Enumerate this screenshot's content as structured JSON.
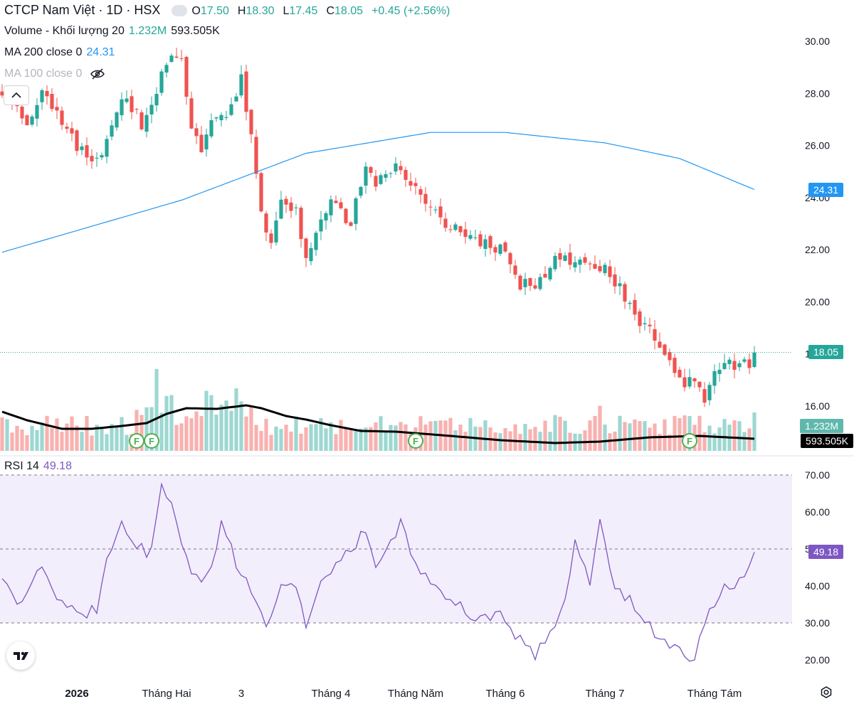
{
  "header": {
    "symbol_title": "CTCP Nam Việt · 1D · HSX",
    "ohlc": {
      "o_label": "O",
      "o": "17.50",
      "h_label": "H",
      "h": "18.30",
      "l_label": "L",
      "l": "17.45",
      "c_label": "C",
      "c": "18.05",
      "change": "+0.45 (+2.56%)"
    },
    "volume_label": "Volume - Khối lượng 20",
    "volume_value": "1.232M",
    "volume_ma_value": "593.505K",
    "ma200_label": "MA 200 close 0",
    "ma200_value": "24.31",
    "ma100_label": "MA 100 close 0"
  },
  "rsi": {
    "label": "RSI 14",
    "value": "49.18",
    "levels": [
      70,
      50,
      30
    ]
  },
  "price_scale": {
    "ticks": [
      "30.00",
      "28.00",
      "26.00",
      "24.00",
      "22.00",
      "20.00",
      "18.00",
      "16.00"
    ],
    "last_price": "18.05",
    "ma200_tag": "24.31",
    "vol_tag": "1.232M",
    "vol_ma_tag": "593.505K"
  },
  "rsi_scale": {
    "ticks": [
      "70.00",
      "60.00",
      "50.00",
      "40.00",
      "30.00",
      "20.00"
    ],
    "current": "49.18"
  },
  "time_axis": [
    "2026",
    "Tháng Hai",
    "3",
    "Tháng 4",
    "Tháng Năm",
    "Tháng 6",
    "Tháng 7",
    "Tháng Tám"
  ],
  "markers": {
    "label": "F"
  },
  "colors": {
    "up": "#26a69a",
    "down": "#ef5350",
    "ma200": "#2196f3",
    "rsi": "#7e57c2",
    "rsi_band": "#f3eefb",
    "vol_ma": "#000000",
    "ma200_tag_bg": "#2196f3",
    "last_price_bg": "#26a69a",
    "rsi_tag_bg": "#7e57c2"
  },
  "chart_data": {
    "type": "candlestick",
    "title": "CTCP Nam Việt · 1D · HSX",
    "y_range": [
      15.0,
      30.4
    ],
    "candles": [],
    "rsi_range": [
      18,
      72
    ],
    "ma200_anchors": [
      [
        0,
        21.9
      ],
      [
        36,
        23.9
      ],
      [
        61,
        25.7
      ],
      [
        86,
        26.5
      ],
      [
        101,
        26.5
      ],
      [
        121,
        26.1
      ],
      [
        136,
        25.5
      ],
      [
        151,
        24.31
      ]
    ],
    "markers": [
      [
        27,
        "F"
      ],
      [
        30,
        "F"
      ],
      [
        83,
        "F"
      ],
      [
        138,
        "F"
      ]
    ]
  }
}
